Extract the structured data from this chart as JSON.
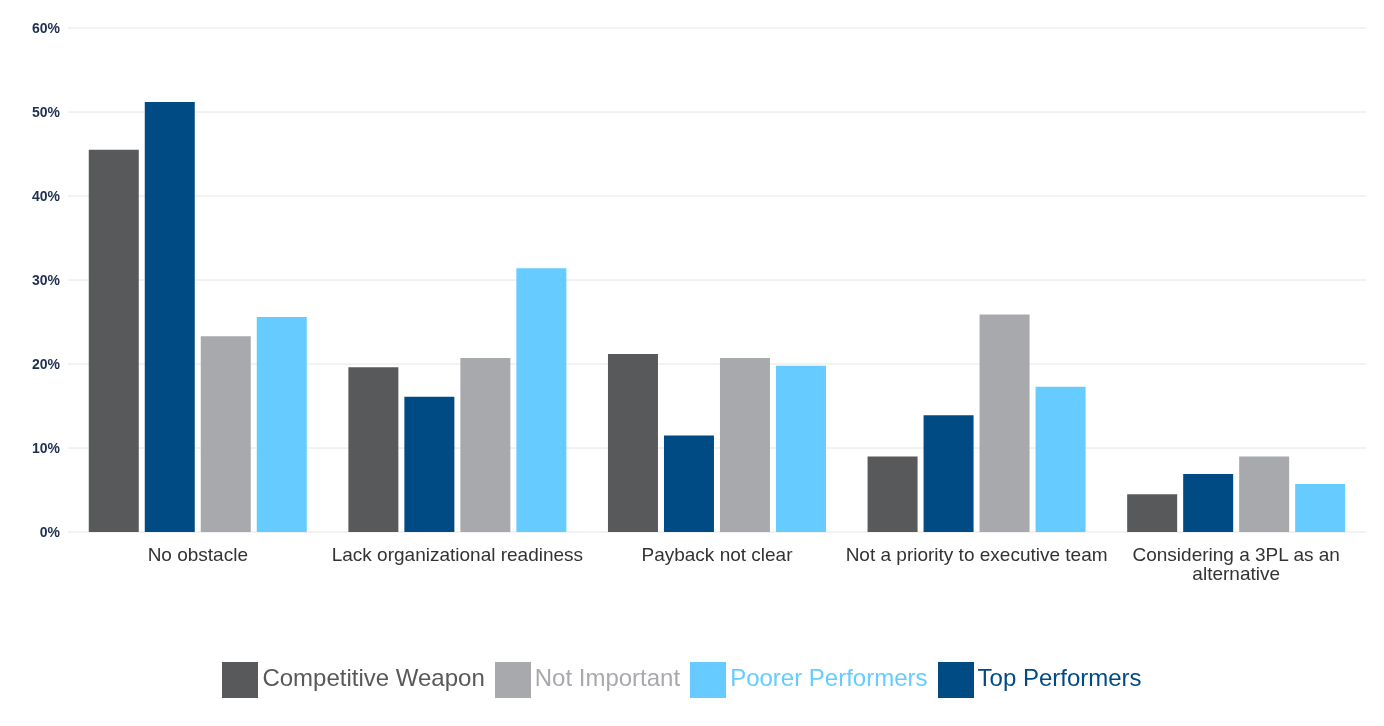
{
  "chart_data": {
    "type": "bar",
    "categories": [
      "No obstacle",
      "Lack organizational readiness",
      "Payback not clear",
      "Not a priority to executive team",
      "Considering a 3PL as an alternative"
    ],
    "series": [
      {
        "name": "Competitive Weapon",
        "color": "#58595b",
        "values": [
          45.5,
          19.6,
          21.2,
          9.0,
          4.5
        ]
      },
      {
        "name": "Top Performers",
        "color": "#004b84",
        "values": [
          51.2,
          16.1,
          11.5,
          13.9,
          6.9
        ]
      },
      {
        "name": "Not Important",
        "color": "#a7a9ac",
        "values": [
          23.3,
          20.7,
          20.7,
          25.9,
          9.0
        ]
      },
      {
        "name": "Poorer Performers",
        "color": "#66ccff",
        "values": [
          25.6,
          31.4,
          19.8,
          17.3,
          5.7
        ]
      }
    ],
    "ylim": [
      0,
      60
    ],
    "yticks": [
      {
        "value": 0,
        "label": "0%"
      },
      {
        "value": 10,
        "label": "10%"
      },
      {
        "value": 20,
        "label": "20%"
      },
      {
        "value": 30,
        "label": "30%"
      },
      {
        "value": 40,
        "label": "40%"
      },
      {
        "value": 50,
        "label": "50%"
      },
      {
        "value": 60,
        "label": "60%"
      }
    ],
    "grid": "y",
    "legend": "bottom"
  }
}
